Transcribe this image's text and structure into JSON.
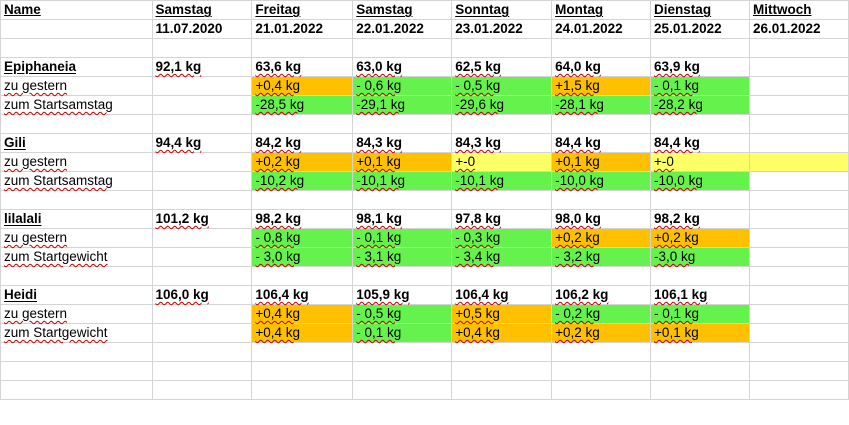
{
  "header": {
    "name_label": "Name",
    "days": [
      {
        "weekday": "Samstag",
        "date": "11.07.2020"
      },
      {
        "weekday": "Freitag",
        "date": "21.01.2022"
      },
      {
        "weekday": "Samstag",
        "date": "22.01.2022"
      },
      {
        "weekday": "Sonntag",
        "date": "23.01.2022"
      },
      {
        "weekday": "Montag",
        "date": "24.01.2022"
      },
      {
        "weekday": "Dienstag",
        "date": "25.01.2022"
      },
      {
        "weekday": "Mittwoch",
        "date": "26.01.2022"
      }
    ]
  },
  "colors": {
    "increase": "#ffc000",
    "decrease": "#66f24c",
    "unchanged": "#ffff66"
  },
  "persons": [
    {
      "name": "Epiphaneia",
      "start_weight": "92,1 kg",
      "weights": [
        "63,6 kg",
        "63,0 kg",
        "62,5 kg",
        "64,0 kg",
        "63,9 kg",
        ""
      ],
      "row2_label": "zu gestern",
      "row2": [
        {
          "v": "+0,4 kg",
          "c": "orange"
        },
        {
          "v": "- 0,6 kg",
          "c": "green"
        },
        {
          "v": "- 0,5 kg",
          "c": "green"
        },
        {
          "v": "+1,5 kg",
          "c": "orange"
        },
        {
          "v": "- 0,1 kg",
          "c": "green"
        },
        {
          "v": "",
          "c": "empty"
        }
      ],
      "row3_label": "zum Startsamstag",
      "row3": [
        {
          "v": "-28,5 kg",
          "c": "green"
        },
        {
          "v": "-29,1 kg",
          "c": "green"
        },
        {
          "v": "-29,6 kg",
          "c": "green"
        },
        {
          "v": "-28,1 kg",
          "c": "green"
        },
        {
          "v": "-28,2 kg",
          "c": "green"
        },
        {
          "v": "",
          "c": "empty"
        }
      ]
    },
    {
      "name": "Gili",
      "start_weight": "94,4 kg",
      "weights": [
        "84,2 kg",
        "84,3 kg",
        "84,3 kg",
        "84,4 kg",
        "84,4 kg",
        ""
      ],
      "row2_label": "zu gestern",
      "row2": [
        {
          "v": "+0,2 kg",
          "c": "orange"
        },
        {
          "v": "+0,1 kg",
          "c": "orange"
        },
        {
          "v": "+-0",
          "c": "yellow"
        },
        {
          "v": "+0,1 kg",
          "c": "orange"
        },
        {
          "v": "+-0",
          "c": "yellow"
        },
        {
          "v": "",
          "c": "yellow"
        }
      ],
      "row3_label": "zum Startsamstag",
      "row3": [
        {
          "v": "-10,2 kg",
          "c": "green"
        },
        {
          "v": "-10,1 kg",
          "c": "green"
        },
        {
          "v": "-10,1 kg",
          "c": "green"
        },
        {
          "v": "-10,0 kg",
          "c": "green"
        },
        {
          "v": "-10,0 kg",
          "c": "green"
        },
        {
          "v": "",
          "c": "empty"
        }
      ]
    },
    {
      "name": "lilalali",
      "start_weight": "101,2 kg",
      "weights": [
        "98,2 kg",
        "98,1 kg",
        "97,8 kg",
        "98,0 kg",
        "98,2 kg",
        ""
      ],
      "row2_label": "zu gestern",
      "row2": [
        {
          "v": "- 0,8 kg",
          "c": "green"
        },
        {
          "v": "- 0,1 kg",
          "c": "green"
        },
        {
          "v": "- 0,3 kg",
          "c": "green"
        },
        {
          "v": "+0,2 kg",
          "c": "orange"
        },
        {
          "v": "+0,2 kg",
          "c": "orange"
        },
        {
          "v": "",
          "c": "empty"
        }
      ],
      "row3_label": "zum Startgewicht",
      "row3": [
        {
          "v": "- 3,0 kg",
          "c": "green"
        },
        {
          "v": "- 3,1 kg",
          "c": "green"
        },
        {
          "v": "- 3,4 kg",
          "c": "green"
        },
        {
          "v": "- 3,2 kg",
          "c": "green"
        },
        {
          "v": "-3,0 kg",
          "c": "green"
        },
        {
          "v": "",
          "c": "empty"
        }
      ]
    },
    {
      "name": "Heidi",
      "start_weight": "106,0 kg",
      "weights": [
        "106,4 kg",
        "105,9 kg",
        "106,4 kg",
        "106,2 kg",
        "106,1 kg",
        ""
      ],
      "row2_label": "zu gestern",
      "row2": [
        {
          "v": "+0,4 kg",
          "c": "orange"
        },
        {
          "v": "- 0,5 kg",
          "c": "green"
        },
        {
          "v": "+0,5 kg",
          "c": "orange"
        },
        {
          "v": "- 0,2 kg",
          "c": "green"
        },
        {
          "v": "- 0,1 kg",
          "c": "green"
        },
        {
          "v": "",
          "c": "empty"
        }
      ],
      "row3_label": "zum Startgewicht",
      "row3": [
        {
          "v": "+0,4 kg",
          "c": "orange"
        },
        {
          "v": "- 0,1 kg",
          "c": "green"
        },
        {
          "v": "+0,4 kg",
          "c": "orange"
        },
        {
          "v": "+0,2 kg",
          "c": "orange"
        },
        {
          "v": "+0,1 kg",
          "c": "orange"
        },
        {
          "v": "",
          "c": "empty"
        }
      ]
    }
  ]
}
